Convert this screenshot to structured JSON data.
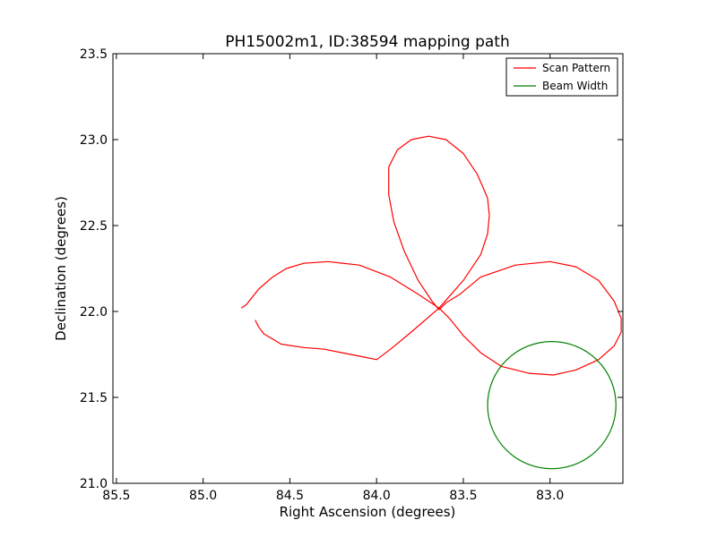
{
  "chart_data": {
    "type": "line",
    "title": "PH15002m1, ID:38594 mapping path",
    "xlabel": "Right Ascension (degrees)",
    "ylabel": "Declination (degrees)",
    "xlim": [
      85.52,
      82.58
    ],
    "ylim": [
      21.0,
      23.5
    ],
    "x_inverted": true,
    "x_ticks": [
      85.5,
      85.0,
      84.5,
      84.0,
      83.5,
      83.0
    ],
    "x_tick_labels": [
      "85.5",
      "85.0",
      "84.5",
      "84.0",
      "83.5",
      "83.0"
    ],
    "y_ticks": [
      21.0,
      21.5,
      22.0,
      22.5,
      23.0,
      23.5
    ],
    "y_tick_labels": [
      "21.0",
      "21.5",
      "22.0",
      "22.5",
      "23.0",
      "23.5"
    ],
    "grid": false,
    "legend_position": "top-right",
    "series": [
      {
        "name": "Scan Pattern",
        "color": "#ff0000",
        "x": [
          84.78,
          84.75,
          84.68,
          84.6,
          84.52,
          84.42,
          84.28,
          84.1,
          83.92,
          83.76,
          83.64,
          83.58,
          83.5,
          83.4,
          83.28,
          83.12,
          82.98,
          82.85,
          82.72,
          82.63,
          82.59,
          82.59,
          82.63,
          82.72,
          82.85,
          83.0,
          83.2,
          83.4,
          83.52,
          83.6,
          83.64,
          83.68,
          83.76,
          83.84,
          83.9,
          83.93,
          83.93,
          83.88,
          83.8,
          83.7,
          83.6,
          83.5,
          83.42,
          83.36,
          83.35,
          83.36,
          83.4,
          83.5,
          83.64,
          83.8,
          83.92,
          84.0,
          84.1,
          84.2,
          84.3,
          84.42,
          84.55,
          84.65,
          84.68,
          84.7
        ],
        "y": [
          22.02,
          22.04,
          22.13,
          22.2,
          22.25,
          22.28,
          22.29,
          22.27,
          22.2,
          22.1,
          22.02,
          21.96,
          21.86,
          21.76,
          21.68,
          21.64,
          21.63,
          21.66,
          21.72,
          21.8,
          21.88,
          21.96,
          22.06,
          22.18,
          22.26,
          22.29,
          22.27,
          22.2,
          22.1,
          22.05,
          22.01,
          22.06,
          22.18,
          22.35,
          22.52,
          22.68,
          22.84,
          22.94,
          23.0,
          23.02,
          23.0,
          22.92,
          22.8,
          22.66,
          22.56,
          22.45,
          22.33,
          22.18,
          22.02,
          21.88,
          21.78,
          21.72,
          21.74,
          21.76,
          21.78,
          21.79,
          21.81,
          21.87,
          21.91,
          21.95
        ]
      },
      {
        "name": "Beam Width",
        "color": "#008000",
        "shape": "circle",
        "center": [
          82.99,
          21.455
        ],
        "radius_deg": 0.37
      }
    ]
  }
}
